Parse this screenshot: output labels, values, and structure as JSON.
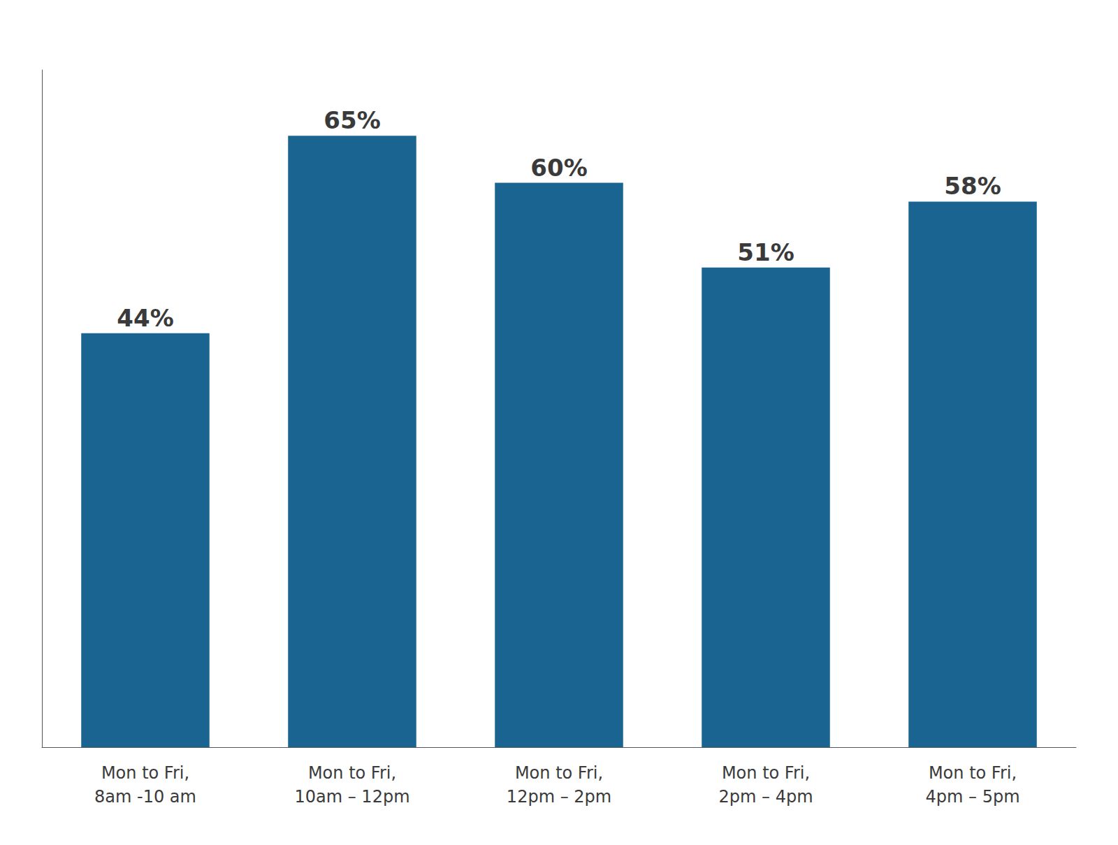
{
  "chart_data": {
    "type": "bar",
    "categories": [
      "Mon to Fri,\n8am -10 am",
      "Mon to Fri,\n10am – 12pm",
      "Mon to Fri,\n12pm – 2pm",
      "Mon to Fri,\n2pm – 4pm",
      "Mon to Fri,\n4pm – 5pm"
    ],
    "values": [
      44,
      65,
      60,
      51,
      58
    ],
    "value_labels": [
      "44%",
      "65%",
      "60%",
      "51%",
      "58%"
    ],
    "data_labels": true,
    "color": "#1a6491",
    "ylim": [
      0,
      72
    ],
    "grid": false,
    "tick_labels": "x"
  }
}
